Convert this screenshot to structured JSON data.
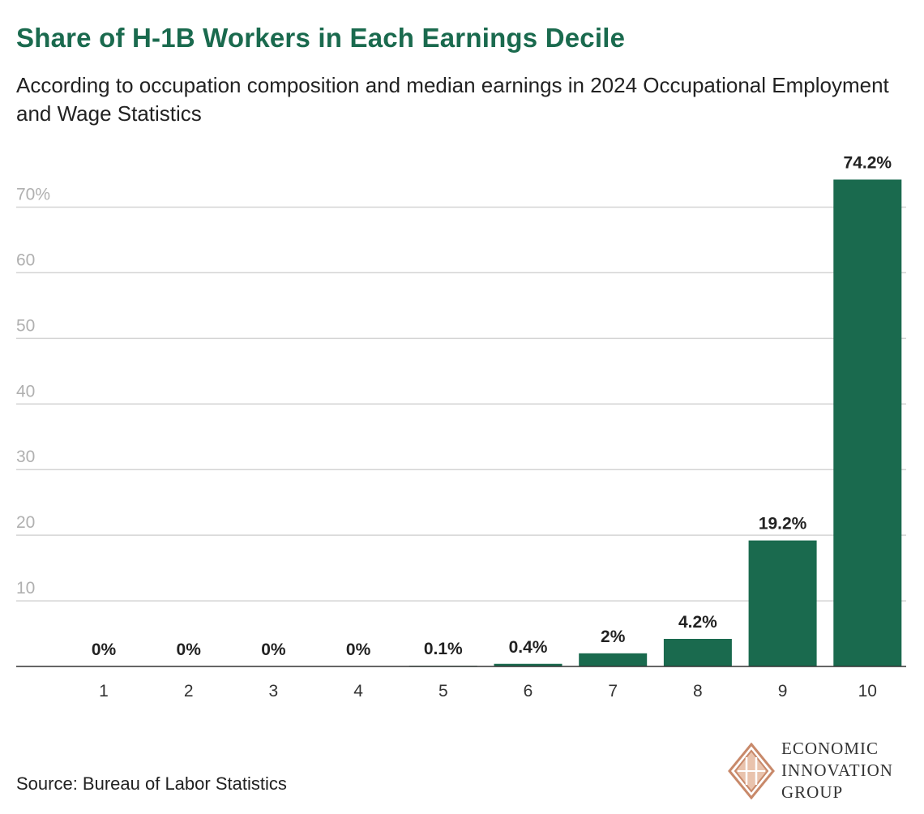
{
  "header": {
    "title": "Share of H-1B Workers in Each Earnings Decile",
    "subtitle": "According to occupation composition and median earnings in 2024 Occupational Employment and Wage Statistics"
  },
  "footer": {
    "source": "Source: Bureau of Labor Statistics",
    "logo_lines": [
      "ECONOMIC",
      "INNOVATION",
      "GROUP"
    ]
  },
  "colors": {
    "bar": "#1a6a4e",
    "title": "#1a6a4e",
    "grid": "#d4d4d4",
    "tick": "#b0b0b0",
    "logo": "#c8896a"
  },
  "chart_data": {
    "type": "bar",
    "title": "Share of H-1B Workers in Each Earnings Decile",
    "xlabel": "",
    "ylabel": "",
    "categories": [
      "1",
      "2",
      "3",
      "4",
      "5",
      "6",
      "7",
      "8",
      "9",
      "10"
    ],
    "values": [
      0,
      0,
      0,
      0,
      0.1,
      0.4,
      2,
      4.2,
      19.2,
      74.2
    ],
    "data_labels": [
      "0%",
      "0%",
      "0%",
      "0%",
      "0.1%",
      "0.4%",
      "2%",
      "4.2%",
      "19.2%",
      "74.2%"
    ],
    "ylim": [
      0,
      75
    ],
    "yticks": [
      10,
      20,
      30,
      40,
      50,
      60,
      70
    ],
    "ytick_labels": [
      "10",
      "20",
      "30",
      "40",
      "50",
      "60",
      "70%"
    ],
    "grid": true
  }
}
